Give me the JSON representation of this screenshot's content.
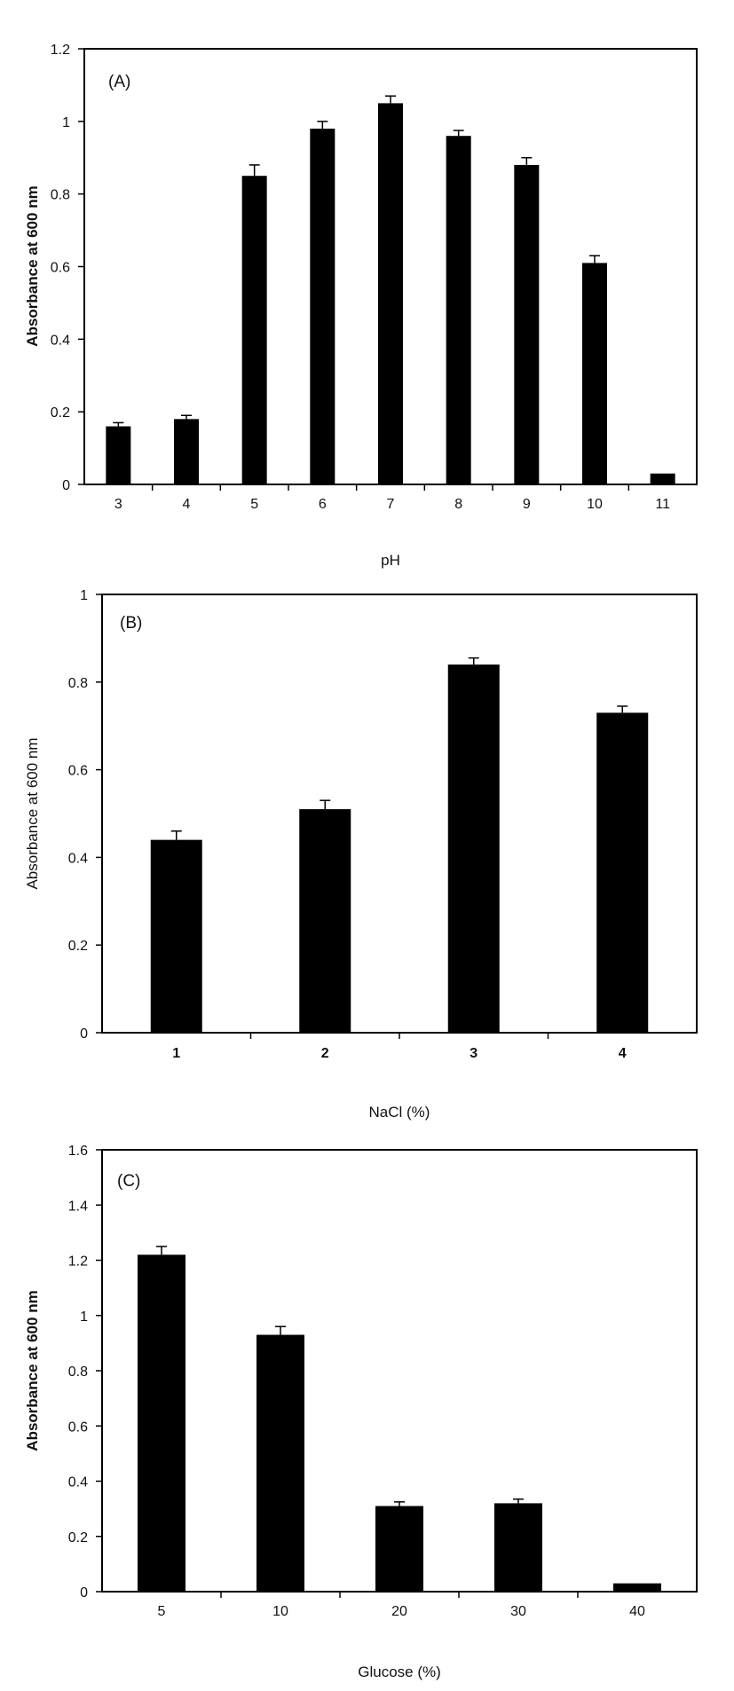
{
  "chart_data": [
    {
      "type": "bar",
      "panel_label": "(A)",
      "categories": [
        "3",
        "4",
        "5",
        "6",
        "7",
        "8",
        "9",
        "10",
        "11"
      ],
      "values": [
        0.16,
        0.18,
        0.85,
        0.98,
        1.05,
        0.96,
        0.88,
        0.61,
        0.03
      ],
      "errors": [
        0.01,
        0.01,
        0.03,
        0.02,
        0.02,
        0.015,
        0.02,
        0.02,
        0
      ],
      "xlabel": "pH",
      "ylabel": "Absorbance at 600 nm",
      "ylim": [
        0,
        1.2
      ],
      "yticks": [
        "0",
        "0.2",
        "0.4",
        "0.6",
        "0.8",
        "1",
        "1.2"
      ],
      "grid": false,
      "bar_color": "#000000"
    },
    {
      "type": "bar",
      "panel_label": "(B)",
      "categories": [
        "1",
        "2",
        "3",
        "4"
      ],
      "values": [
        0.44,
        0.51,
        0.84,
        0.73
      ],
      "errors": [
        0.02,
        0.02,
        0.015,
        0.015
      ],
      "xlabel": "NaCl (%)",
      "ylabel": "Absorbance at 600 nm",
      "ylim": [
        0,
        1
      ],
      "yticks": [
        "0",
        "0.2",
        "0.4",
        "0.6",
        "0.8",
        "1"
      ],
      "grid": false,
      "bar_color": "#000000"
    },
    {
      "type": "bar",
      "panel_label": "(C)",
      "categories": [
        "5",
        "10",
        "20",
        "30",
        "40"
      ],
      "values": [
        1.22,
        0.93,
        0.31,
        0.32,
        0.03
      ],
      "errors": [
        0.03,
        0.03,
        0.015,
        0.015,
        0
      ],
      "xlabel": "Glucose (%)",
      "ylabel": "Absorbance at 600 nm",
      "ylim": [
        0,
        1.6
      ],
      "yticks": [
        "0",
        "0.2",
        "0.4",
        "0.6",
        "0.8",
        "1",
        "1.2",
        "1.4",
        "1.6"
      ],
      "grid": false,
      "bar_color": "#000000"
    }
  ]
}
